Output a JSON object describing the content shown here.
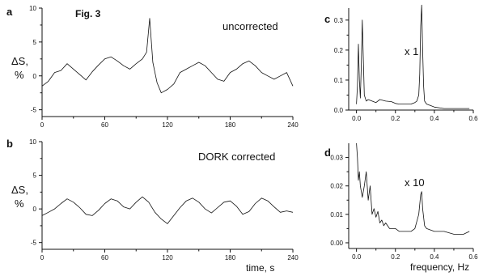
{
  "figure": {
    "title": "Fig. 3",
    "ylabel_line1": "ΔS,",
    "ylabel_line2": "%",
    "xlabel_time": "time, s",
    "xlabel_freq": "frequency, Hz"
  },
  "chart_data": [
    {
      "id": "a",
      "panel_label": "a",
      "type": "line",
      "annotation": "uncorrected",
      "xlabel": "",
      "ylabel": "ΔS, %",
      "xlim": [
        0,
        240
      ],
      "ylim": [
        -6,
        10
      ],
      "xticks": [
        0,
        60,
        120,
        180,
        240
      ],
      "yticks": [
        -5,
        0,
        5,
        10
      ],
      "series": [
        {
          "x": [
            0,
            6,
            12,
            18,
            24,
            30,
            36,
            42,
            48,
            54,
            60,
            66,
            72,
            78,
            84,
            90,
            96,
            100,
            103,
            106,
            110,
            114,
            120,
            126,
            132,
            138,
            144,
            150,
            156,
            162,
            168,
            174,
            180,
            186,
            192,
            198,
            204,
            210,
            216,
            222,
            228,
            234,
            240
          ],
          "y": [
            -1.5,
            -0.8,
            0.5,
            0.8,
            1.8,
            1.0,
            0.2,
            -0.6,
            0.6,
            1.6,
            2.5,
            2.8,
            2.2,
            1.5,
            1.0,
            1.8,
            2.5,
            3.5,
            8.5,
            2.0,
            -1.0,
            -2.5,
            -2.0,
            -1.2,
            0.5,
            1.0,
            1.5,
            2.0,
            1.5,
            0.5,
            -0.5,
            -0.8,
            0.5,
            1.0,
            1.8,
            2.2,
            1.5,
            0.5,
            0.0,
            -0.5,
            0.0,
            0.5,
            -1.5
          ]
        }
      ]
    },
    {
      "id": "b",
      "panel_label": "b",
      "type": "line",
      "annotation": "DORK corrected",
      "xlabel": "time, s",
      "ylabel": "ΔS, %",
      "xlim": [
        0,
        240
      ],
      "ylim": [
        -6,
        10
      ],
      "xticks": [
        0,
        60,
        120,
        180,
        240
      ],
      "yticks": [
        -5,
        0,
        5,
        10
      ],
      "series": [
        {
          "x": [
            0,
            6,
            12,
            18,
            24,
            30,
            36,
            42,
            48,
            54,
            60,
            66,
            72,
            78,
            84,
            90,
            96,
            102,
            108,
            114,
            120,
            126,
            132,
            138,
            144,
            150,
            156,
            162,
            168,
            174,
            180,
            186,
            192,
            198,
            204,
            210,
            216,
            222,
            228,
            234,
            240
          ],
          "y": [
            -1.0,
            -0.5,
            0.0,
            0.8,
            1.5,
            1.0,
            0.2,
            -0.8,
            -1.0,
            -0.2,
            0.8,
            1.5,
            1.2,
            0.3,
            0.0,
            1.0,
            1.8,
            1.0,
            -0.5,
            -1.5,
            -2.2,
            -1.0,
            0.2,
            1.2,
            1.6,
            1.0,
            0.0,
            -0.6,
            0.2,
            1.0,
            1.2,
            0.4,
            -0.8,
            -0.4,
            0.8,
            1.6,
            1.2,
            0.3,
            -0.5,
            -0.3,
            -0.5
          ]
        }
      ]
    },
    {
      "id": "c",
      "panel_label": "c",
      "type": "line",
      "annotation": "x 1",
      "xlabel": "",
      "ylabel": "",
      "xlim": [
        -0.04,
        0.6
      ],
      "ylim": [
        0,
        0.34
      ],
      "xticks": [
        0.0,
        0.2,
        0.4,
        0.6
      ],
      "xtick_labels": [
        "0.0",
        "0.2",
        "0.4",
        "0.6"
      ],
      "yticks": [
        0.0,
        0.1,
        0.2,
        0.3
      ],
      "ytick_labels": [
        "0.0",
        "0.1",
        "0.2",
        "0.3"
      ],
      "series": [
        {
          "x": [
            0.0,
            0.005,
            0.01,
            0.015,
            0.02,
            0.025,
            0.03,
            0.035,
            0.04,
            0.05,
            0.06,
            0.08,
            0.1,
            0.12,
            0.15,
            0.18,
            0.2,
            0.22,
            0.25,
            0.28,
            0.3,
            0.31,
            0.32,
            0.325,
            0.33,
            0.335,
            0.34,
            0.345,
            0.35,
            0.36,
            0.38,
            0.4,
            0.45,
            0.5,
            0.55,
            0.58
          ],
          "y": [
            0.02,
            0.08,
            0.22,
            0.1,
            0.04,
            0.15,
            0.3,
            0.18,
            0.05,
            0.03,
            0.035,
            0.03,
            0.025,
            0.035,
            0.03,
            0.028,
            0.022,
            0.02,
            0.02,
            0.02,
            0.025,
            0.03,
            0.05,
            0.12,
            0.28,
            0.35,
            0.2,
            0.08,
            0.03,
            0.02,
            0.015,
            0.01,
            0.005,
            0.005,
            0.005,
            0.005
          ]
        }
      ]
    },
    {
      "id": "d",
      "panel_label": "d",
      "type": "line",
      "annotation": "x 10",
      "xlabel": "frequency, Hz",
      "ylabel": "",
      "xlim": [
        -0.04,
        0.6
      ],
      "ylim": [
        -0.002,
        0.035
      ],
      "xticks": [
        0.0,
        0.2,
        0.4,
        0.6
      ],
      "xtick_labels": [
        "0.0",
        "0.2",
        "0.4",
        "0.6"
      ],
      "yticks": [
        0.0,
        0.01,
        0.02,
        0.03
      ],
      "ytick_labels": [
        "0.00",
        "0.01",
        "0.02",
        "0.03"
      ],
      "series": [
        {
          "x": [
            0.0,
            0.005,
            0.01,
            0.015,
            0.02,
            0.025,
            0.03,
            0.04,
            0.05,
            0.06,
            0.07,
            0.08,
            0.09,
            0.1,
            0.11,
            0.12,
            0.13,
            0.14,
            0.15,
            0.17,
            0.2,
            0.22,
            0.25,
            0.28,
            0.3,
            0.32,
            0.33,
            0.335,
            0.34,
            0.35,
            0.36,
            0.4,
            0.45,
            0.5,
            0.55,
            0.58
          ],
          "y": [
            0.035,
            0.03,
            0.022,
            0.025,
            0.02,
            0.018,
            0.016,
            0.02,
            0.025,
            0.015,
            0.02,
            0.01,
            0.012,
            0.009,
            0.011,
            0.007,
            0.008,
            0.006,
            0.007,
            0.005,
            0.005,
            0.004,
            0.004,
            0.004,
            0.005,
            0.01,
            0.017,
            0.018,
            0.012,
            0.006,
            0.005,
            0.004,
            0.004,
            0.003,
            0.003,
            0.004
          ]
        }
      ]
    }
  ]
}
